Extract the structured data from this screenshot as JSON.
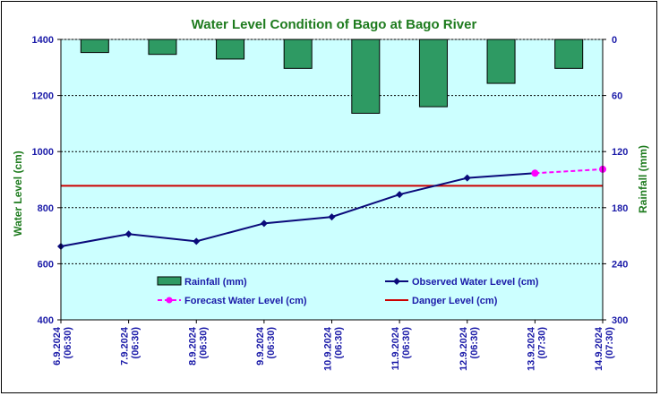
{
  "chart_data": {
    "type": "bar+line",
    "title": "Water Level Condition of Bago at Bago River",
    "ylabel_left": "Water Level (cm)",
    "ylabel_right": "Rainfall (mm)",
    "ylim_left": [
      400,
      1400
    ],
    "yticks_left": [
      400,
      600,
      800,
      1000,
      1200,
      1400
    ],
    "ylim_right": [
      0,
      300
    ],
    "yticks_right": [
      0,
      60,
      120,
      180,
      240,
      300
    ],
    "right_axis_inverted": true,
    "x_ticks": [
      {
        "date": "6.9.2024",
        "time": "(06:30)"
      },
      {
        "date": "7.9.2024",
        "time": "(06:30)"
      },
      {
        "date": "8.9.2024",
        "time": "(06:30)"
      },
      {
        "date": "9.9.2024",
        "time": "(06:30)"
      },
      {
        "date": "10.9.2024",
        "time": "(06:30)"
      },
      {
        "date": "11.9.2024",
        "time": "(06:30)"
      },
      {
        "date": "12.9.2024",
        "time": "(06:30)"
      },
      {
        "date": "13.9.2024",
        "time": "(07:30)"
      },
      {
        "date": "14.9.2024",
        "time": "(07:30)"
      }
    ],
    "grid": true,
    "series": [
      {
        "name": "Rainfall (mm)",
        "type": "bar",
        "axis": "right",
        "color": "#2e9a63",
        "values": [
          14,
          16,
          21,
          31,
          79,
          72,
          47,
          31
        ]
      },
      {
        "name": "Observed Water Level (cm)",
        "type": "line",
        "axis": "left",
        "color": "#0a0a7a",
        "values": [
          662,
          706,
          680,
          744,
          767,
          847,
          906,
          923
        ]
      },
      {
        "name": "Forecast Water Level (cm)",
        "type": "line-dashed",
        "axis": "left",
        "color": "#ff00ff",
        "points": [
          [
            7,
            923
          ],
          [
            8,
            937
          ]
        ]
      },
      {
        "name": "Danger Level (cm)",
        "type": "hline",
        "axis": "left",
        "color": "#cc0000",
        "value": 878
      }
    ],
    "legend": [
      "Rainfall (mm)",
      "Observed Water Level (cm)",
      "Forecast Water Level (cm)",
      "Danger Level (cm)"
    ],
    "legend_placement": "bottom-inside",
    "plot_background": "#ccffff"
  }
}
